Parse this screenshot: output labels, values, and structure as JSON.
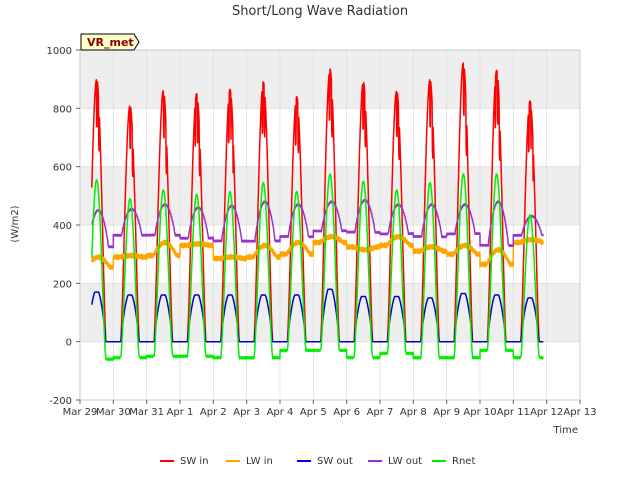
{
  "chart_data": {
    "type": "line",
    "title": "Short/Long Wave Radiation",
    "xlabel": "Time",
    "ylabel": "(W/m2)",
    "badge": "VR_met",
    "ylim": [
      -200,
      1000
    ],
    "yticks": [
      -200,
      0,
      200,
      400,
      600,
      800,
      1000
    ],
    "xlim": [
      0,
      15
    ],
    "xticks": [
      {
        "v": 0,
        "label": "Mar 29"
      },
      {
        "v": 1,
        "label": "Mar 30"
      },
      {
        "v": 2,
        "label": "Mar 31"
      },
      {
        "v": 3,
        "label": "Apr 1"
      },
      {
        "v": 4,
        "label": "Apr 2"
      },
      {
        "v": 5,
        "label": "Apr 3"
      },
      {
        "v": 6,
        "label": "Apr 4"
      },
      {
        "v": 7,
        "label": "Apr 5"
      },
      {
        "v": 8,
        "label": "Apr 6"
      },
      {
        "v": 9,
        "label": "Apr 7"
      },
      {
        "v": 10,
        "label": "Apr 8"
      },
      {
        "v": 11,
        "label": "Apr 9"
      },
      {
        "v": 12,
        "label": "Apr 10"
      },
      {
        "v": 13,
        "label": "Apr 11"
      },
      {
        "v": 14,
        "label": "Apr 12"
      },
      {
        "v": 15,
        "label": "Apr 13"
      }
    ],
    "grid": true,
    "legend_position": "bottom",
    "background_bands": "#eeeeee",
    "series": [
      {
        "name": "SW in",
        "color": "#ff0000",
        "daily_peaks": [
          900,
          810,
          860,
          850,
          865,
          890,
          840,
          935,
          890,
          860,
          900,
          955,
          930,
          825
        ]
      },
      {
        "name": "LW in",
        "color": "#ffa500",
        "daily_night": [
          255,
          290,
          295,
          330,
          285,
          290,
          300,
          340,
          325,
          330,
          310,
          300,
          265,
          340
        ],
        "daily_day": [
          290,
          295,
          340,
          335,
          290,
          330,
          340,
          360,
          315,
          360,
          325,
          330,
          315,
          350
        ]
      },
      {
        "name": "SW out",
        "color": "#0000cc",
        "daily_peaks": [
          170,
          160,
          160,
          160,
          160,
          160,
          160,
          180,
          155,
          155,
          150,
          165,
          160,
          150
        ]
      },
      {
        "name": "LW out",
        "color": "#9932cc",
        "daily_night": [
          325,
          365,
          365,
          355,
          345,
          345,
          360,
          380,
          375,
          370,
          360,
          370,
          330,
          365
        ],
        "daily_peaks": [
          450,
          455,
          470,
          460,
          465,
          480,
          470,
          480,
          485,
          470,
          470,
          470,
          480,
          430
        ]
      },
      {
        "name": "Rnet",
        "color": "#00ee00",
        "daily_peaks": [
          555,
          490,
          520,
          505,
          515,
          545,
          515,
          575,
          550,
          520,
          545,
          575,
          575,
          435
        ],
        "daily_night": [
          -60,
          -55,
          -50,
          -50,
          -55,
          -55,
          -30,
          -30,
          -55,
          -40,
          -55,
          -55,
          -30,
          -55
        ]
      }
    ],
    "day_length": [
      0.22,
      0.78
    ]
  }
}
